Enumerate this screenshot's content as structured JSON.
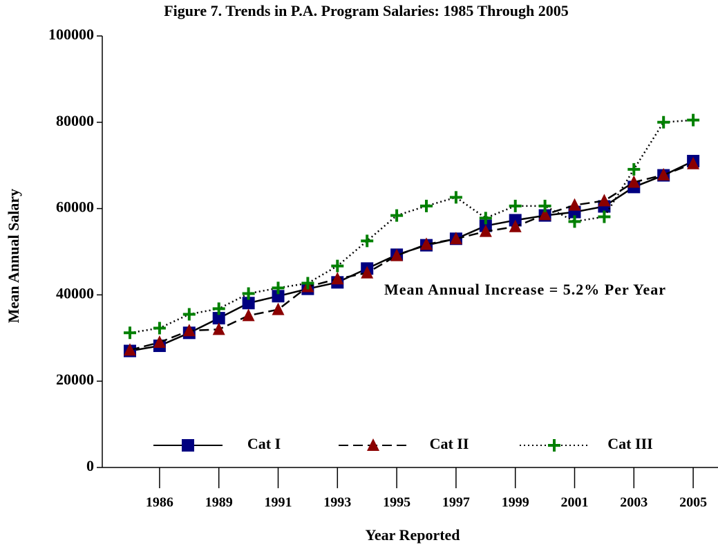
{
  "chart_data": {
    "type": "line",
    "title": "Figure 7.  Trends in P.A. Program Salaries: 1985 Through 2005",
    "x_label": "Year Reported",
    "y_label": "Mean Annual Salary",
    "annotation": "Mean Annual Increase = 5.2% Per Year",
    "categories": [
      null,
      "1986",
      null,
      "1989",
      null,
      "1991",
      null,
      "1993",
      null,
      "1995",
      null,
      "1997",
      null,
      "1999",
      null,
      "2001",
      null,
      "2003",
      null,
      "2005"
    ],
    "ylim": [
      0,
      100000
    ],
    "yticks": [
      0,
      20000,
      40000,
      60000,
      80000,
      100000
    ],
    "legend": "bottom",
    "series": [
      {
        "name": "Cat I",
        "color": "#000080",
        "line_style": "solid",
        "marker": "square",
        "values": [
          27000,
          28200,
          31200,
          34600,
          38100,
          39700,
          41400,
          42900,
          46100,
          49300,
          51500,
          53000,
          56000,
          57300,
          58400,
          59200,
          60500,
          65000,
          67700,
          71000
        ]
      },
      {
        "name": "Cat II",
        "color": "#8b0000",
        "line_style": "dashed",
        "marker": "triangle",
        "values": [
          27200,
          29000,
          31700,
          32000,
          35200,
          36600,
          41900,
          43700,
          45100,
          49100,
          51700,
          53000,
          54700,
          55800,
          58600,
          60800,
          61800,
          66100,
          67800,
          70400
        ]
      },
      {
        "name": "Cat III",
        "color": "#008000",
        "line_style": "dotted",
        "marker": "plus",
        "values": [
          31200,
          32300,
          35500,
          36800,
          40300,
          41600,
          42700,
          46700,
          52500,
          58400,
          60600,
          62600,
          57800,
          60600,
          60600,
          57000,
          58100,
          69100,
          80000,
          80500
        ]
      }
    ]
  }
}
